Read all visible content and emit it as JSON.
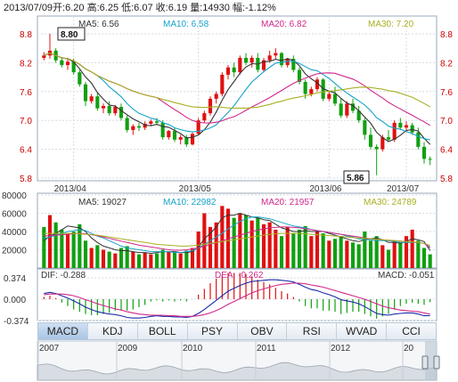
{
  "info_bar": {
    "date": "2013/07/09",
    "open": "开:6.20",
    "high": "高:6.25",
    "low": "低:6.07",
    "close": "收:6.19",
    "volume": "量:14930",
    "change": "幅:-1.12%"
  },
  "price_panel": {
    "ma_legend": [
      {
        "label": "MA5: 6.56",
        "color": "#333333"
      },
      {
        "label": "MA10: 6.58",
        "color": "#17a3c8"
      },
      {
        "label": "MA20: 6.82",
        "color": "#d0288a"
      },
      {
        "label": "MA30: 7.20",
        "color": "#a8b020"
      }
    ],
    "y_ticks": [
      "8.8",
      "8.2",
      "7.6",
      "7.0",
      "6.4",
      "5.8"
    ],
    "y_min": 5.8,
    "y_max": 8.8,
    "x_labels": [
      "2013/04",
      "2013/05",
      "2013/06",
      "2013/07"
    ],
    "high_flag": "8.80",
    "low_flag": "5.86"
  },
  "volume_panel": {
    "ma_legend": [
      {
        "label": "MA5: 19027",
        "color": "#333333"
      },
      {
        "label": "MA10: 22982",
        "color": "#17a3c8"
      },
      {
        "label": "MA20: 21957",
        "color": "#d0288a"
      },
      {
        "label": "MA30: 24789",
        "color": "#a8b020"
      }
    ],
    "y_ticks": [
      "80000",
      "60000",
      "40000",
      "20000"
    ],
    "y_max": 80000
  },
  "macd_panel": {
    "dif": "DIF: -0.288",
    "dea": "DEA: -0.262",
    "macd": "MACD: -0.051",
    "y_ticks": [
      "0.374",
      "0.000",
      "-0.374"
    ]
  },
  "tabs": [
    "MACD",
    "KDJ",
    "BOLL",
    "PSY",
    "OBV",
    "RSI",
    "WVAD",
    "CCI"
  ],
  "active_tab": "MACD",
  "timeline": {
    "years": [
      "2007",
      "2009",
      "2010",
      "2011",
      "2012",
      "20"
    ]
  },
  "colors": {
    "up": "#e01010",
    "down": "#10a010",
    "ma5": "#333333",
    "ma10": "#17a3c8",
    "ma20": "#d0288a",
    "ma30": "#a8b020",
    "dif": "#1a2aa8",
    "dea": "#d0288a"
  },
  "chart_data": {
    "type": "candlestick",
    "series": [
      {
        "name": "price",
        "candles": [
          [
            8.3,
            8.42,
            8.25,
            8.35
          ],
          [
            8.35,
            8.8,
            8.28,
            8.45
          ],
          [
            8.45,
            8.5,
            8.2,
            8.25
          ],
          [
            8.25,
            8.32,
            8.1,
            8.15
          ],
          [
            8.15,
            8.3,
            8.05,
            8.22
          ],
          [
            8.22,
            8.28,
            7.95,
            8.0
          ],
          [
            8.0,
            8.05,
            7.7,
            7.75
          ],
          [
            7.75,
            7.8,
            7.3,
            7.4
          ],
          [
            7.4,
            7.55,
            7.35,
            7.5
          ],
          [
            7.5,
            7.58,
            7.2,
            7.25
          ],
          [
            7.25,
            7.35,
            7.15,
            7.3
          ],
          [
            7.3,
            7.4,
            7.1,
            7.15
          ],
          [
            7.15,
            7.32,
            7.1,
            7.28
          ],
          [
            7.28,
            7.35,
            7.0,
            7.05
          ],
          [
            7.05,
            7.1,
            6.75,
            6.8
          ],
          [
            6.8,
            6.92,
            6.7,
            6.88
          ],
          [
            6.88,
            6.95,
            6.78,
            6.85
          ],
          [
            6.85,
            6.98,
            6.8,
            6.93
          ],
          [
            6.93,
            7.02,
            6.88,
            6.98
          ],
          [
            6.98,
            7.05,
            6.9,
            6.95
          ],
          [
            6.95,
            7.0,
            6.6,
            6.65
          ],
          [
            6.65,
            6.8,
            6.6,
            6.78
          ],
          [
            6.78,
            6.85,
            6.55,
            6.6
          ],
          [
            6.6,
            6.7,
            6.5,
            6.65
          ],
          [
            6.65,
            6.7,
            6.45,
            6.5
          ],
          [
            6.5,
            6.75,
            6.48,
            6.72
          ],
          [
            6.72,
            7.05,
            6.7,
            7.0
          ],
          [
            7.0,
            7.2,
            6.95,
            7.15
          ],
          [
            7.15,
            7.5,
            7.1,
            7.45
          ],
          [
            7.45,
            7.6,
            7.35,
            7.55
          ],
          [
            7.55,
            8.0,
            7.5,
            7.95
          ],
          [
            7.95,
            8.15,
            7.85,
            8.1
          ],
          [
            8.1,
            8.2,
            7.9,
            8.0
          ],
          [
            8.0,
            8.35,
            7.95,
            8.3
          ],
          [
            8.3,
            8.4,
            8.15,
            8.2
          ],
          [
            8.2,
            8.35,
            8.1,
            8.3
          ],
          [
            8.3,
            8.4,
            8.0,
            8.05
          ],
          [
            8.05,
            8.3,
            8.0,
            8.25
          ],
          [
            8.25,
            8.45,
            8.2,
            8.35
          ],
          [
            8.35,
            8.5,
            8.28,
            8.4
          ],
          [
            8.4,
            8.42,
            8.1,
            8.15
          ],
          [
            8.15,
            8.3,
            8.1,
            8.28
          ],
          [
            8.28,
            8.35,
            8.0,
            8.05
          ],
          [
            8.05,
            8.1,
            7.75,
            7.8
          ],
          [
            7.8,
            7.85,
            7.45,
            7.55
          ],
          [
            7.55,
            7.7,
            7.5,
            7.65
          ],
          [
            7.65,
            7.9,
            7.6,
            7.85
          ],
          [
            7.85,
            7.88,
            7.4,
            7.45
          ],
          [
            7.45,
            7.6,
            7.4,
            7.55
          ],
          [
            7.55,
            7.7,
            7.3,
            7.35
          ],
          [
            7.35,
            7.45,
            7.05,
            7.1
          ],
          [
            7.1,
            7.4,
            7.05,
            7.35
          ],
          [
            7.35,
            7.45,
            7.15,
            7.2
          ],
          [
            7.2,
            7.3,
            6.95,
            7.0
          ],
          [
            7.0,
            7.05,
            6.6,
            6.7
          ],
          [
            6.7,
            6.85,
            6.4,
            6.45
          ],
          [
            6.45,
            6.5,
            5.86,
            6.4
          ],
          [
            6.4,
            6.7,
            6.35,
            6.65
          ],
          [
            6.65,
            6.8,
            6.55,
            6.6
          ],
          [
            6.6,
            7.0,
            6.55,
            6.95
          ],
          [
            6.95,
            7.05,
            6.8,
            6.85
          ],
          [
            6.85,
            6.98,
            6.75,
            6.9
          ],
          [
            6.9,
            6.95,
            6.7,
            6.75
          ],
          [
            6.75,
            6.85,
            6.4,
            6.45
          ],
          [
            6.45,
            6.55,
            6.1,
            6.2
          ],
          [
            6.2,
            6.25,
            6.07,
            6.19
          ]
        ]
      }
    ],
    "volume": [
      [
        45000,
        0
      ],
      [
        58000,
        1
      ],
      [
        50000,
        0
      ],
      [
        42000,
        0
      ],
      [
        38000,
        1
      ],
      [
        40000,
        0
      ],
      [
        48000,
        0
      ],
      [
        30000,
        0
      ],
      [
        22000,
        1
      ],
      [
        25000,
        0
      ],
      [
        20000,
        1
      ],
      [
        18000,
        0
      ],
      [
        16000,
        1
      ],
      [
        22000,
        0
      ],
      [
        24000,
        0
      ],
      [
        18000,
        1
      ],
      [
        15000,
        0
      ],
      [
        17000,
        1
      ],
      [
        15000,
        1
      ],
      [
        16000,
        0
      ],
      [
        20000,
        0
      ],
      [
        18000,
        1
      ],
      [
        17000,
        0
      ],
      [
        16000,
        1
      ],
      [
        19000,
        0
      ],
      [
        22000,
        1
      ],
      [
        40000,
        1
      ],
      [
        60000,
        1
      ],
      [
        45000,
        1
      ],
      [
        50000,
        1
      ],
      [
        68000,
        1
      ],
      [
        65000,
        1
      ],
      [
        55000,
        0
      ],
      [
        60000,
        1
      ],
      [
        58000,
        0
      ],
      [
        52000,
        1
      ],
      [
        55000,
        0
      ],
      [
        48000,
        1
      ],
      [
        50000,
        1
      ],
      [
        42000,
        1
      ],
      [
        35000,
        0
      ],
      [
        45000,
        1
      ],
      [
        38000,
        0
      ],
      [
        42000,
        0
      ],
      [
        46000,
        0
      ],
      [
        35000,
        1
      ],
      [
        40000,
        1
      ],
      [
        38000,
        0
      ],
      [
        30000,
        1
      ],
      [
        32000,
        0
      ],
      [
        35000,
        0
      ],
      [
        30000,
        1
      ],
      [
        28000,
        0
      ],
      [
        26000,
        0
      ],
      [
        40000,
        0
      ],
      [
        30000,
        0
      ],
      [
        35000,
        0
      ],
      [
        25000,
        1
      ],
      [
        20000,
        0
      ],
      [
        30000,
        1
      ],
      [
        28000,
        0
      ],
      [
        35000,
        1
      ],
      [
        42000,
        1
      ],
      [
        30000,
        0
      ],
      [
        22000,
        0
      ],
      [
        15000,
        0
      ]
    ],
    "volume_ma": {
      "ma5": [
        30000,
        35000,
        38000,
        42000,
        46000,
        45000,
        44000,
        40000,
        33000,
        28000,
        24000,
        22000,
        20000,
        19000,
        19000,
        18000,
        17000,
        17000,
        16000,
        17000,
        18000,
        18000,
        18000,
        17000,
        17000,
        18000,
        23000,
        32000,
        38000,
        45000,
        55000,
        58000,
        58000,
        60000,
        58000,
        56000,
        55000,
        53000,
        52000,
        48000,
        44000,
        42000,
        40000,
        40000,
        41000,
        40000,
        40000,
        40000,
        38000,
        36000,
        34000,
        32000,
        30000,
        29000,
        31000,
        32000,
        33000,
        31000,
        28000,
        28000,
        27000,
        29000,
        32000,
        31000,
        29000,
        19027
      ],
      "ma10": [
        32000,
        34000,
        36000,
        38000,
        40000,
        41000,
        42000,
        41000,
        38000,
        35000,
        33000,
        30000,
        27000,
        24000,
        22000,
        21000,
        20000,
        19000,
        18000,
        18000,
        18000,
        18000,
        17000,
        17000,
        18000,
        19000,
        22000,
        26000,
        30000,
        34000,
        38000,
        43000,
        47000,
        51000,
        54000,
        56000,
        56000,
        55000,
        54000,
        52000,
        50000,
        48000,
        46000,
        45000,
        44000,
        42000,
        41000,
        40000,
        39000,
        38000,
        37000,
        35000,
        34000,
        32000,
        31000,
        31000,
        30000,
        30000,
        30000,
        29000,
        28000,
        28000,
        28000,
        28000,
        27000,
        22982
      ],
      "ma20": [
        35000,
        35500,
        36000,
        36500,
        37000,
        37500,
        38000,
        37500,
        36500,
        35500,
        34000,
        32500,
        31000,
        29500,
        28000,
        26500,
        25000,
        24000,
        23000,
        22000,
        21000,
        20000,
        19500,
        19500,
        20000,
        21000,
        22000,
        24000,
        26000,
        28000,
        30000,
        32000,
        34000,
        36000,
        38000,
        40000,
        41500,
        43000,
        44000,
        44500,
        45000,
        45000,
        44500,
        44000,
        43000,
        42000,
        41000,
        40000,
        39000,
        38000,
        37000,
        36000,
        35000,
        34000,
        33000,
        32000,
        31500,
        31000,
        30500,
        30000,
        29500,
        29000,
        28500,
        28000,
        27000,
        21957
      ],
      "ma30": [
        38000,
        38000,
        38000,
        38000,
        38000,
        38000,
        37500,
        37000,
        36500,
        36000,
        35000,
        34000,
        33000,
        32000,
        31000,
        30000,
        29000,
        28000,
        27000,
        26000,
        25500,
        25000,
        24500,
        24000,
        24000,
        24500,
        25000,
        26000,
        27000,
        28000,
        29000,
        30000,
        31000,
        32000,
        33000,
        34000,
        35000,
        36000,
        37000,
        37500,
        38000,
        38000,
        38000,
        38000,
        37500,
        37000,
        36500,
        36000,
        35500,
        35000,
        34500,
        34000,
        33500,
        33000,
        32500,
        32000,
        31500,
        31000,
        30500,
        30000,
        29500,
        29000,
        28500,
        28000,
        27000,
        24789
      ]
    },
    "macd": {
      "dif": [
        0.1,
        0.12,
        0.1,
        0.06,
        0.02,
        -0.03,
        -0.08,
        -0.14,
        -0.18,
        -0.22,
        -0.24,
        -0.26,
        -0.27,
        -0.29,
        -0.32,
        -0.33,
        -0.33,
        -0.32,
        -0.3,
        -0.29,
        -0.3,
        -0.3,
        -0.31,
        -0.31,
        -0.32,
        -0.3,
        -0.25,
        -0.18,
        -0.1,
        -0.02,
        0.06,
        0.14,
        0.19,
        0.24,
        0.28,
        0.31,
        0.32,
        0.33,
        0.34,
        0.34,
        0.33,
        0.32,
        0.3,
        0.26,
        0.21,
        0.17,
        0.15,
        0.11,
        0.08,
        0.04,
        -0.01,
        -0.03,
        -0.05,
        -0.08,
        -0.13,
        -0.19,
        -0.25,
        -0.27,
        -0.28,
        -0.26,
        -0.25,
        -0.24,
        -0.24,
        -0.26,
        -0.29,
        -0.288
      ],
      "dea": [
        0.08,
        0.09,
        0.09,
        0.09,
        0.08,
        0.06,
        0.03,
        -0.01,
        -0.04,
        -0.08,
        -0.11,
        -0.14,
        -0.17,
        -0.19,
        -0.22,
        -0.24,
        -0.26,
        -0.27,
        -0.28,
        -0.28,
        -0.28,
        -0.29,
        -0.29,
        -0.3,
        -0.3,
        -0.3,
        -0.29,
        -0.27,
        -0.24,
        -0.2,
        -0.15,
        -0.09,
        -0.04,
        0.01,
        0.06,
        0.11,
        0.15,
        0.18,
        0.21,
        0.24,
        0.26,
        0.27,
        0.28,
        0.28,
        0.27,
        0.25,
        0.23,
        0.21,
        0.18,
        0.15,
        0.12,
        0.09,
        0.06,
        0.03,
        0.0,
        -0.04,
        -0.08,
        -0.12,
        -0.15,
        -0.17,
        -0.19,
        -0.2,
        -0.21,
        -0.22,
        -0.24,
        -0.262
      ]
    }
  }
}
